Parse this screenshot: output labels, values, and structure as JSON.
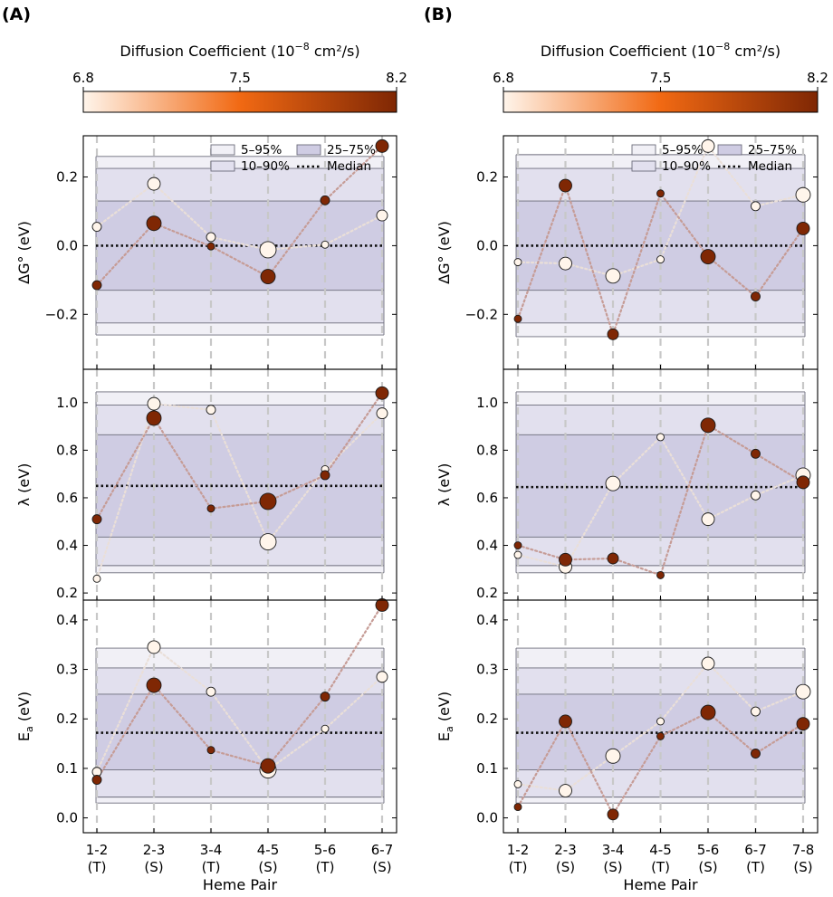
{
  "figure": {
    "colorbar": {
      "label_prefix": "Diffusion Coefficient (10",
      "label_exp": "−8",
      "label_suffix": " cm²/s)",
      "min": 6.8,
      "max": 8.2,
      "ticks": [
        "6.8",
        "7.5",
        "8.2"
      ],
      "color_low": "#fff5eb",
      "color_mid": "#f16913",
      "color_high": "#7f2704"
    },
    "legend": {
      "band_5_95": "5–95%",
      "band_10_90": "10–90%",
      "band_25_75": "25–75%",
      "median": "Median"
    },
    "panel_colors": {
      "dark_point": "#7f2704",
      "light_point": "#fdf0e2",
      "dark_line": "#c69c96",
      "light_line": "#eadfd8"
    }
  },
  "chart_data": [
    {
      "panel": "(A)",
      "type": "scatter",
      "xlabel": "Heme Pair",
      "categories": [
        "1-2\n(T)",
        "2-3\n(S)",
        "3-4\n(T)",
        "4-5\n(S)",
        "5-6\n(T)",
        "6-7\n(S)"
      ],
      "subplots": [
        {
          "ylabel": "ΔG° (eV)",
          "ylim": [
            -0.36,
            0.32
          ],
          "yticks": [
            -0.2,
            0.0,
            0.2
          ],
          "ytick_labels": [
            "−0.2",
            "0.0",
            "0.2"
          ],
          "bands": {
            "p5": -0.26,
            "p10": -0.225,
            "p25": -0.13,
            "median": 0.0,
            "p75": 0.13,
            "p90": 0.225,
            "p95": 0.26
          },
          "series": [
            {
              "name": "low diffusion",
              "diffusion": 6.8,
              "values": [
                0.055,
                0.18,
                0.025,
                -0.012,
                0.003,
                0.088
              ],
              "sizes": [
                5,
                7,
                5,
                9,
                4,
                6
              ]
            },
            {
              "name": "high diffusion",
              "diffusion": 8.2,
              "values": [
                -0.115,
                0.065,
                -0.002,
                -0.09,
                0.132,
                0.29
              ],
              "sizes": [
                5,
                8,
                4,
                8,
                5,
                7
              ]
            }
          ]
        },
        {
          "ylabel": "λ (eV)",
          "ylim": [
            0.17,
            1.14
          ],
          "yticks": [
            0.2,
            0.4,
            0.6,
            0.8,
            1.0
          ],
          "ytick_labels": [
            "0.2",
            "0.4",
            "0.6",
            "0.8",
            "1.0"
          ],
          "bands": {
            "p5": 0.285,
            "p10": 0.315,
            "p25": 0.435,
            "median": 0.65,
            "p75": 0.865,
            "p90": 0.99,
            "p95": 1.045
          },
          "series": [
            {
              "name": "low diffusion",
              "diffusion": 6.8,
              "values": [
                0.26,
                0.995,
                0.97,
                0.415,
                0.72,
                0.955
              ],
              "sizes": [
                4,
                7,
                5,
                9,
                4,
                6
              ]
            },
            {
              "name": "high diffusion",
              "diffusion": 8.2,
              "values": [
                0.51,
                0.935,
                0.555,
                0.585,
                0.695,
                1.04
              ],
              "sizes": [
                5,
                8,
                4,
                9,
                5,
                7
              ]
            }
          ]
        },
        {
          "ylabel": "Ea (eV)",
          "ylim": [
            -0.03,
            0.44
          ],
          "yticks": [
            0.0,
            0.1,
            0.2,
            0.3,
            0.4
          ],
          "ytick_labels": [
            "0.0",
            "0.1",
            "0.2",
            "0.3",
            "0.4"
          ],
          "bands": {
            "p5": 0.03,
            "p10": 0.042,
            "p25": 0.097,
            "median": 0.172,
            "p75": 0.25,
            "p90": 0.303,
            "p95": 0.343
          },
          "series": [
            {
              "name": "low diffusion",
              "diffusion": 6.8,
              "values": [
                0.093,
                0.345,
                0.255,
                0.097,
                0.18,
                0.285
              ],
              "sizes": [
                5,
                7,
                5,
                9,
                4,
                6
              ]
            },
            {
              "name": "high diffusion",
              "diffusion": 8.2,
              "values": [
                0.077,
                0.268,
                0.137,
                0.105,
                0.245,
                0.43
              ],
              "sizes": [
                5,
                8,
                4,
                8,
                5,
                7
              ]
            }
          ]
        }
      ]
    },
    {
      "panel": "(B)",
      "type": "scatter",
      "xlabel": "Heme Pair",
      "categories": [
        "1-2\n(T)",
        "2-3\n(S)",
        "3-4\n(S)",
        "4-5\n(T)",
        "5-6\n(S)",
        "6-7\n(T)",
        "7-8\n(S)"
      ],
      "subplots": [
        {
          "ylabel": "ΔG° (eV)",
          "ylim": [
            -0.36,
            0.32
          ],
          "yticks": [
            -0.2,
            0.0,
            0.2
          ],
          "ytick_labels": [
            "−0.2",
            "0.0",
            "0.2"
          ],
          "bands": {
            "p5": -0.265,
            "p10": -0.225,
            "p25": -0.13,
            "median": 0.0,
            "p75": 0.13,
            "p90": 0.225,
            "p95": 0.265
          },
          "series": [
            {
              "name": "low diffusion",
              "diffusion": 6.8,
              "values": [
                -0.048,
                -0.052,
                -0.088,
                -0.04,
                0.29,
                0.115,
                0.148
              ],
              "sizes": [
                4,
                7,
                8,
                4,
                7,
                5,
                8
              ]
            },
            {
              "name": "high diffusion",
              "diffusion": 8.2,
              "values": [
                -0.213,
                0.175,
                -0.258,
                0.152,
                -0.032,
                -0.148,
                0.05
              ],
              "sizes": [
                4,
                7,
                6,
                4,
                8,
                5,
                7
              ]
            }
          ]
        },
        {
          "ylabel": "λ (eV)",
          "ylim": [
            0.17,
            1.14
          ],
          "yticks": [
            0.2,
            0.4,
            0.6,
            0.8,
            1.0
          ],
          "ytick_labels": [
            "0.2",
            "0.4",
            "0.6",
            "0.8",
            "1.0"
          ],
          "bands": {
            "p5": 0.285,
            "p10": 0.315,
            "p25": 0.435,
            "median": 0.645,
            "p75": 0.865,
            "p90": 0.99,
            "p95": 1.045
          },
          "series": [
            {
              "name": "low diffusion",
              "diffusion": 6.8,
              "values": [
                0.36,
                0.31,
                0.66,
                0.855,
                0.51,
                0.61,
                0.695
              ],
              "sizes": [
                4,
                7,
                8,
                4,
                7,
                5,
                8
              ]
            },
            {
              "name": "high diffusion",
              "diffusion": 8.2,
              "values": [
                0.4,
                0.34,
                0.345,
                0.275,
                0.905,
                0.785,
                0.665
              ],
              "sizes": [
                4,
                7,
                6,
                4,
                8,
                5,
                7
              ]
            }
          ]
        },
        {
          "ylabel": "Ea (eV)",
          "ylim": [
            -0.03,
            0.44
          ],
          "yticks": [
            0.0,
            0.1,
            0.2,
            0.3,
            0.4
          ],
          "ytick_labels": [
            "0.0",
            "0.1",
            "0.2",
            "0.3",
            "0.4"
          ],
          "bands": {
            "p5": 0.03,
            "p10": 0.042,
            "p25": 0.097,
            "median": 0.172,
            "p75": 0.25,
            "p90": 0.303,
            "p95": 0.343
          },
          "series": [
            {
              "name": "low diffusion",
              "diffusion": 6.8,
              "values": [
                0.068,
                0.055,
                0.125,
                0.195,
                0.312,
                0.215,
                0.255
              ],
              "sizes": [
                4,
                7,
                8,
                4,
                7,
                5,
                8
              ]
            },
            {
              "name": "high diffusion",
              "diffusion": 8.2,
              "values": [
                0.022,
                0.195,
                0.007,
                0.165,
                0.213,
                0.13,
                0.19
              ],
              "sizes": [
                4,
                7,
                6,
                4,
                8,
                5,
                7
              ]
            }
          ]
        }
      ]
    }
  ]
}
